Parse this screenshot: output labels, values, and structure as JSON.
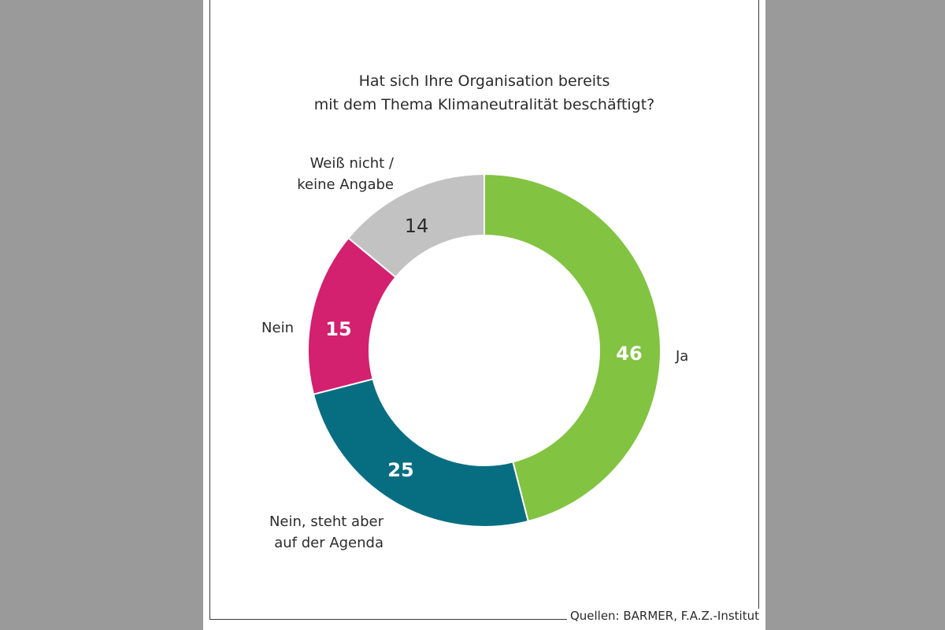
{
  "title_lines": [
    "Hat sich Ihre Organisation bereits",
    "mit dem Thema Klimaneutralität beschäftigt?"
  ],
  "source": "Quellen: BARMER, F.A.Z.-Institut",
  "chart_data": {
    "type": "pie",
    "donut": true,
    "title": "Hat sich Ihre Organisation bereits mit dem Thema Klimaneutralität beschäftigt?",
    "categories": [
      "Ja",
      "Nein, steht aber auf der Agenda",
      "Nein",
      "Weiß nicht / keine Angabe"
    ],
    "values": [
      46,
      25,
      15,
      14
    ],
    "colors": [
      "#82c341",
      "#076e82",
      "#d3206f",
      "#c2c2c2"
    ],
    "value_label_colors": [
      "#ffffff",
      "#ffffff",
      "#ffffff",
      "#2b2b2b"
    ],
    "category_label_lines": [
      [
        "Ja"
      ],
      [
        "Nein, steht aber",
        "auf der Agenda"
      ],
      [
        "Nein"
      ],
      [
        "Weiß nicht /",
        "keine Angabe"
      ]
    ],
    "value_labels": [
      "46",
      "25",
      "15",
      "14"
    ]
  }
}
